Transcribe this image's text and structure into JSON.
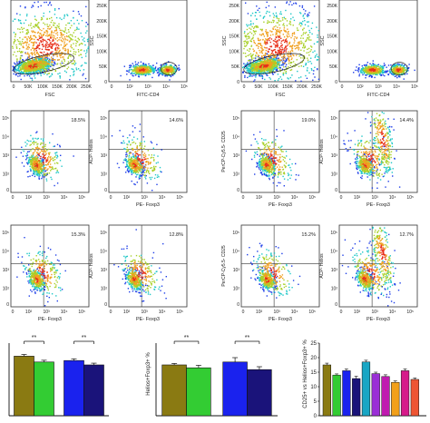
{
  "figure": {
    "row1": [
      {
        "xlabel": "FSC",
        "ylabel": "",
        "xticks": [
          "0",
          "50K",
          "100K",
          "150K",
          "200K",
          "250K"
        ],
        "yticks": []
      },
      {
        "xlabel": "FITC-CD4",
        "ylabel": "SSC",
        "xticks": [
          "0",
          "10²",
          "10³",
          "10⁴",
          "10⁵"
        ],
        "yticks": [
          "0",
          "50K",
          "100K",
          "150K",
          "200K",
          "250K"
        ]
      },
      {
        "xlabel": "FSC",
        "ylabel": "SSC",
        "xticks": [
          "0",
          "50K",
          "100K",
          "150K",
          "200K",
          "250K"
        ],
        "yticks": [
          "0",
          "50K",
          "100K",
          "150K",
          "200K",
          "250K"
        ]
      },
      {
        "xlabel": "FITC-CD4",
        "ylabel": "SSC",
        "xticks": [
          "0",
          "10²",
          "10³",
          "10⁴",
          "10⁵"
        ],
        "yticks": [
          "0",
          "50K",
          "100K",
          "150K",
          "200K",
          "250K"
        ]
      }
    ],
    "row2": [
      {
        "xlabel": "",
        "ylabel": "",
        "pct": "18.5%"
      },
      {
        "xlabel": "PE- Foxp3",
        "ylabel": "ACP- Helios",
        "pct": "14.6%"
      },
      {
        "xlabel": "PE- Foxp3",
        "ylabel": "PerCP-Cy5.5- CD25",
        "pct": "19.0%"
      },
      {
        "xlabel": "PE- Foxp3",
        "ylabel": "ACP- Helios",
        "pct": "14.4%"
      }
    ],
    "row3": [
      {
        "xlabel": "PE- Foxp3",
        "ylabel": "",
        "pct": "15.3%"
      },
      {
        "xlabel": "PE- Foxp3",
        "ylabel": "ACP- Helios",
        "pct": "12.8%"
      },
      {
        "xlabel": "PE- Foxp3",
        "ylabel": "PerCP-Cy5.5- CD25",
        "pct": "15.2%"
      },
      {
        "xlabel": "PE- Foxp3",
        "ylabel": "ACP- Helios",
        "pct": "12.7%"
      }
    ],
    "log_ticks": [
      "10²",
      "10³",
      "10⁴",
      "10⁵"
    ],
    "zero_tick": "0"
  },
  "chart_data": [
    {
      "type": "bar",
      "title": "",
      "xlabel": "",
      "ylabel": "",
      "values": [
        20.5,
        18.5,
        19.0,
        17.5
      ],
      "errors": [
        0.6,
        0.6,
        0.6,
        0.6
      ],
      "colors": [
        "#8a7a12",
        "#33cc33",
        "#1a22ee",
        "#1a137a"
      ],
      "ylim": [
        0,
        25
      ],
      "significance": [
        {
          "label": "**",
          "pair": [
            0,
            1
          ]
        },
        {
          "label": "**",
          "pair": [
            2,
            3
          ]
        }
      ]
    },
    {
      "type": "bar",
      "title": "",
      "xlabel": "",
      "ylabel": "Helios+Foxp3+ %",
      "values": [
        14.0,
        13.2,
        14.8,
        12.7
      ],
      "errors": [
        0.4,
        0.7,
        1.2,
        0.8
      ],
      "colors": [
        "#8a7a12",
        "#33cc33",
        "#1a22ee",
        "#1a137a"
      ],
      "ylim": [
        0,
        20
      ],
      "significance": [
        {
          "label": "**",
          "pair": [
            0,
            1
          ]
        },
        {
          "label": "**",
          "pair": [
            2,
            3
          ]
        }
      ]
    },
    {
      "type": "bar",
      "title": "",
      "xlabel": "",
      "ylabel": "CD25+ vs Helios+Foxp3+ %",
      "yticks": [
        "0",
        "5",
        "10",
        "15",
        "20",
        "25"
      ],
      "values": [
        17.5,
        14.0,
        15.5,
        12.8,
        18.5,
        14.5,
        13.5,
        11.5,
        15.5,
        12.5
      ],
      "errors": [
        0.6,
        0.4,
        0.6,
        0.8,
        0.6,
        0.5,
        0.6,
        0.5,
        0.6,
        0.5
      ],
      "colors": [
        "#8a7a12",
        "#33cc33",
        "#1a22ee",
        "#1a137a",
        "#19a6c4",
        "#9a2fd6",
        "#c01ab0",
        "#f2a01a",
        "#d61a8a",
        "#ee5533"
      ],
      "ylim": [
        0,
        25
      ]
    }
  ]
}
